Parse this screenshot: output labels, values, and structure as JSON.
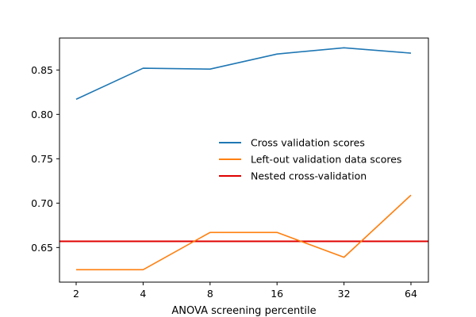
{
  "chart_data": {
    "type": "line",
    "title": "",
    "xlabel": "ANOVA screening percentile",
    "ylabel": "",
    "categories": [
      "2",
      "4",
      "8",
      "16",
      "32",
      "64"
    ],
    "ylim": [
      0.611,
      0.886
    ],
    "yticks": [
      0.65,
      0.7,
      0.75,
      0.8,
      0.85
    ],
    "ytick_labels": [
      "0.65",
      "0.70",
      "0.75",
      "0.80",
      "0.85"
    ],
    "series": [
      {
        "name": "Cross validation scores",
        "color": "#1f77b4",
        "values": [
          0.817,
          0.852,
          0.851,
          0.868,
          0.875,
          0.869
        ]
      },
      {
        "name": "Left-out validation data scores",
        "color": "#ff7f0e",
        "values": [
          0.625,
          0.625,
          0.667,
          0.667,
          0.639,
          0.709
        ]
      }
    ],
    "hlines": [
      {
        "name": "Nested cross-validation",
        "color": "#e00000",
        "value": 0.657
      }
    ],
    "legend": {
      "position": "center-right",
      "entries": [
        "Cross validation scores",
        "Left-out validation data scores",
        "Nested cross-validation"
      ]
    },
    "grid": false
  }
}
